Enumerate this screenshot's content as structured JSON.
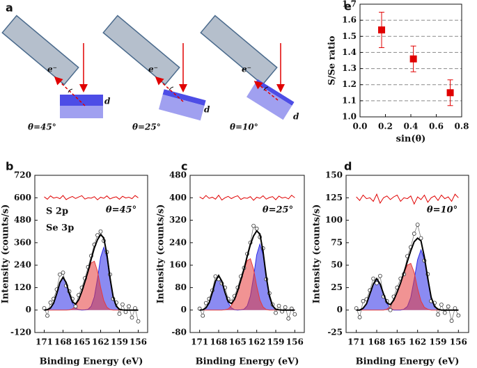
{
  "diagram": {
    "panel": "a",
    "setups": [
      {
        "electron": "e⁻",
        "depth": "d",
        "angle": "θ=45°"
      },
      {
        "electron": "e⁻",
        "depth": "d",
        "angle": "θ=25°"
      },
      {
        "electron": "e⁻",
        "depth": "d",
        "angle": "θ=10°"
      }
    ]
  },
  "chart_data": [
    {
      "panel": "b",
      "type": "line",
      "annotation": "θ=45°",
      "xlabel": "Binding Energy (eV)",
      "ylabel": "Intensity (counts/s)",
      "x": [
        171,
        170.5,
        170,
        169.5,
        169,
        168.5,
        168,
        167.5,
        167,
        166.5,
        166,
        165.5,
        165,
        164.5,
        164,
        163.5,
        163,
        162.5,
        162,
        161.5,
        161,
        160.5,
        160,
        159.5,
        159,
        158.5,
        158,
        157.5,
        157,
        156.5,
        156
      ],
      "series": [
        {
          "name": "S 2p",
          "color": "#2b2be8",
          "values": [
            0,
            2,
            11,
            37,
            88,
            147,
            175,
            147,
            88,
            37,
            11,
            2,
            0,
            1,
            4,
            21,
            71,
            168,
            282,
            335,
            282,
            168,
            71,
            21,
            4,
            1,
            0,
            0,
            0,
            0,
            0
          ]
        },
        {
          "name": "Se 3p",
          "color": "#e63a3a",
          "values": [
            0,
            0,
            0,
            0,
            0,
            0,
            0,
            0,
            1,
            6,
            21,
            53,
            99,
            151,
            204,
            252,
            261,
            208,
            121,
            51,
            15,
            3,
            0,
            0,
            0,
            0,
            0,
            0,
            0,
            0,
            0
          ]
        }
      ],
      "fit": {
        "color": "#000000",
        "values": [
          0,
          2,
          11,
          37,
          88,
          147,
          175,
          147,
          89,
          43,
          32,
          55,
          99,
          152,
          208,
          273,
          332,
          376,
          403,
          386,
          297,
          171,
          71,
          21,
          4,
          1,
          0,
          0,
          0,
          0,
          0
        ]
      },
      "points": [
        10,
        -30,
        40,
        60,
        110,
        190,
        200,
        130,
        100,
        60,
        20,
        80,
        120,
        170,
        230,
        290,
        350,
        400,
        420,
        370,
        310,
        190,
        60,
        40,
        -20,
        30,
        -10,
        20,
        -40,
        10,
        -60
      ],
      "residual": {
        "color": "#e00000",
        "values": [
          605,
          592,
          610,
          598,
          603,
          595,
          612,
          590,
          600,
          607,
          596,
          604,
          611,
          593,
          600,
          598,
          606,
          589,
          603,
          597,
          610,
          594,
          601,
          605,
          592,
          608,
          599,
          603,
          595,
          612,
          600
        ]
      },
      "xlim": [
        172.5,
        154.5
      ],
      "xticks": [
        171,
        168,
        165,
        162,
        159,
        156
      ],
      "ylim": [
        -120,
        720
      ],
      "yticks": [
        -120,
        0,
        120,
        240,
        360,
        480,
        600,
        720
      ]
    },
    {
      "panel": "c",
      "type": "line",
      "annotation": "θ=25°",
      "xlabel": "Binding Energy (eV)",
      "ylabel": "Intensity (counts/s)",
      "x": [
        171,
        170.5,
        170,
        169.5,
        169,
        168.5,
        168,
        167.5,
        167,
        166.5,
        166,
        165.5,
        165,
        164.5,
        164,
        163.5,
        163,
        162.5,
        162,
        161.5,
        161,
        160.5,
        160,
        159.5,
        159,
        158.5,
        158,
        157.5,
        157,
        156.5,
        156
      ],
      "series": [
        {
          "color": "#2b2be8",
          "values": [
            0,
            1,
            8,
            26,
            62,
            103,
            123,
            103,
            62,
            26,
            8,
            1,
            0,
            1,
            3,
            15,
            50,
            118,
            197,
            235,
            197,
            118,
            50,
            15,
            3,
            1,
            0,
            0,
            0,
            0,
            0
          ]
        },
        {
          "color": "#e63a3a",
          "values": [
            0,
            0,
            0,
            0,
            0,
            0,
            0,
            0,
            1,
            4,
            15,
            37,
            69,
            106,
            143,
            176,
            183,
            146,
            85,
            36,
            11,
            2,
            0,
            0,
            0,
            0,
            0,
            0,
            0,
            0,
            0
          ]
        }
      ],
      "fit": {
        "color": "#000000",
        "values": [
          0,
          1,
          8,
          26,
          62,
          103,
          123,
          103,
          63,
          30,
          23,
          38,
          69,
          107,
          146,
          191,
          233,
          264,
          282,
          271,
          208,
          120,
          50,
          15,
          3,
          1,
          0,
          0,
          0,
          0,
          0
        ]
      },
      "points": [
        5,
        -20,
        25,
        40,
        70,
        120,
        110,
        95,
        80,
        40,
        30,
        50,
        80,
        120,
        150,
        200,
        240,
        300,
        290,
        260,
        220,
        110,
        60,
        20,
        -10,
        15,
        -5,
        10,
        -30,
        5,
        -15
      ],
      "residual": {
        "color": "#e00000",
        "values": [
          403,
          396,
          408,
          398,
          402,
          395,
          409,
          392,
          400,
          405,
          397,
          403,
          407,
          394,
          400,
          398,
          404,
          391,
          402,
          398,
          407,
          395,
          401,
          404,
          393,
          406,
          399,
          402,
          396,
          409,
          400
        ]
      },
      "xlim": [
        172.5,
        154.5
      ],
      "xticks": [
        171,
        168,
        165,
        162,
        159,
        156
      ],
      "ylim": [
        -80,
        480
      ],
      "yticks": [
        -80,
        0,
        80,
        160,
        240,
        320,
        400,
        480
      ]
    },
    {
      "panel": "d",
      "type": "line",
      "annotation": "θ=10°",
      "xlabel": "Binding Energy (eV)",
      "ylabel": "Intensity (counts/s)",
      "x": [
        171,
        170.5,
        170,
        169.5,
        169,
        168.5,
        168,
        167.5,
        167,
        166.5,
        166,
        165.5,
        165,
        164.5,
        164,
        163.5,
        163,
        162.5,
        162,
        161.5,
        161,
        160.5,
        160,
        159.5,
        159,
        158.5,
        158,
        157.5,
        157,
        156.5,
        156
      ],
      "series": [
        {
          "color": "#2b2be8",
          "values": [
            0,
            0,
            2,
            7,
            18,
            29,
            35,
            29,
            18,
            7,
            2,
            0,
            0,
            0,
            1,
            4,
            14,
            34,
            56,
            67,
            56,
            34,
            14,
            4,
            1,
            0,
            0,
            0,
            0,
            0,
            0
          ]
        },
        {
          "color": "#e63a3a",
          "values": [
            0,
            0,
            0,
            0,
            0,
            0,
            0,
            0,
            0,
            1,
            4,
            11,
            20,
            30,
            41,
            50,
            52,
            42,
            24,
            10,
            3,
            1,
            0,
            0,
            0,
            0,
            0,
            0,
            0,
            0,
            0
          ]
        }
      ],
      "fit": {
        "color": "#000000",
        "values": [
          0,
          0,
          2,
          7,
          18,
          29,
          35,
          29,
          18,
          8,
          6,
          11,
          20,
          30,
          42,
          54,
          66,
          76,
          80,
          77,
          59,
          35,
          14,
          4,
          1,
          0,
          0,
          0,
          0,
          0,
          0
        ]
      },
      "points": [
        2,
        -8,
        10,
        12,
        22,
        35,
        30,
        38,
        15,
        10,
        0,
        15,
        25,
        35,
        40,
        60,
        70,
        85,
        95,
        80,
        55,
        40,
        10,
        8,
        -5,
        6,
        -3,
        4,
        -12,
        2,
        -6
      ],
      "residual": {
        "color": "#e00000",
        "values": [
          126,
          122,
          128,
          124,
          125,
          121,
          129,
          119,
          125,
          127,
          123,
          126,
          128,
          121,
          125,
          124,
          127,
          118,
          126,
          123,
          128,
          120,
          125,
          127,
          122,
          128,
          124,
          126,
          121,
          129,
          125
        ]
      },
      "xlim": [
        172.5,
        154.5
      ],
      "xticks": [
        171,
        168,
        165,
        162,
        159,
        156
      ],
      "ylim": [
        -25,
        150
      ],
      "yticks": [
        -25,
        0,
        25,
        50,
        75,
        100,
        125,
        150
      ]
    },
    {
      "panel": "e",
      "type": "scatter",
      "xlabel": "sin(θ)",
      "ylabel": "S/Se ratio",
      "x": [
        0.17,
        0.42,
        0.71
      ],
      "values": [
        1.54,
        1.36,
        1.15
      ],
      "errors": [
        0.11,
        0.08,
        0.08
      ],
      "color": "#e00000",
      "grid": true,
      "xlim": [
        0,
        0.8
      ],
      "xticks": [
        {
          "value": 0,
          "label": "0.0"
        },
        0.2,
        0.4,
        0.6,
        0.8
      ],
      "ylim": [
        1.0,
        1.7
      ],
      "yticks": [
        {
          "value": 1.0,
          "label": "1.0"
        },
        1.1,
        1.2,
        1.3,
        1.4,
        1.5,
        1.6,
        1.7
      ]
    }
  ]
}
